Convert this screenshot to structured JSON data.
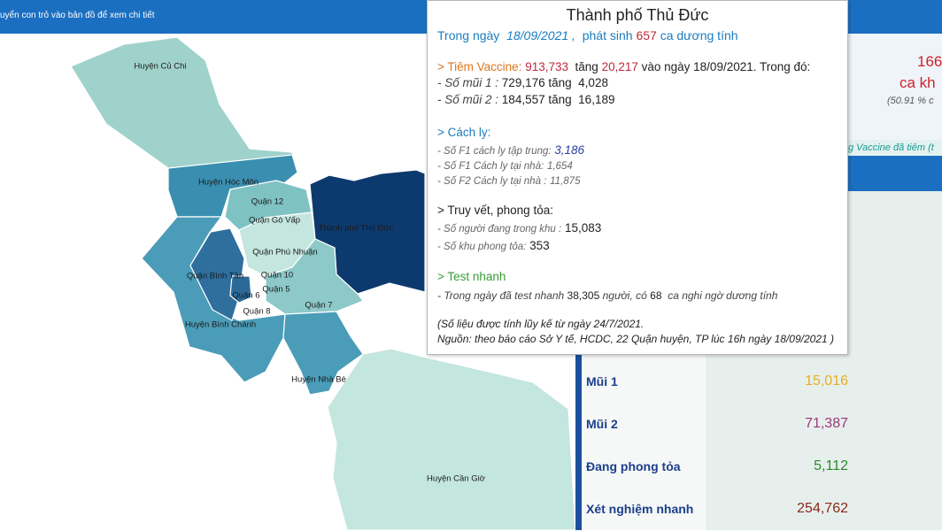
{
  "header": {
    "hint": "uyển con trỏ vào bản đồ để xem chi tiết"
  },
  "map": {
    "districts": [
      {
        "label": "Huyện Củ Chi"
      },
      {
        "label": "Huyện Hóc Môn"
      },
      {
        "label": "Quận 12"
      },
      {
        "label": "Quận Gò Vấp"
      },
      {
        "label": "Thành phố Thủ Đức"
      },
      {
        "label": "Quận Phú Nhuận"
      },
      {
        "label": "Quận Bình Tân"
      },
      {
        "label": "Quận 10"
      },
      {
        "label": "Quận 6"
      },
      {
        "label": "Quận 5"
      },
      {
        "label": "Quận 8"
      },
      {
        "label": "Quận 7"
      },
      {
        "label": "Huyện Bình Chánh"
      },
      {
        "label": "Huyện Nhà Bè"
      },
      {
        "label": "Huyện Cần Giờ"
      }
    ]
  },
  "tooltip": {
    "title": "Thành phố Thủ Đức",
    "daily": {
      "label": "Trong ngày",
      "date": "18/09/2021 ,",
      "text": "phát sinh",
      "count": "657",
      "suffix": "ca dương tính"
    },
    "vaccine": {
      "heading": "> Tiêm Vaccine:",
      "total": "913,733",
      "text1": "tăng",
      "increase": "20,217",
      "text2": "vào ngày 18/09/2021. Trong đó:",
      "doses": [
        {
          "label": "- Số mũi 1 :",
          "value": "729,176",
          "text": "tăng",
          "increase": "4,028"
        },
        {
          "label": "- Số mũi 2 :",
          "value": "184,557",
          "text": "tăng",
          "increase": "16,189"
        }
      ]
    },
    "isolation": {
      "heading": "> Cách ly:",
      "items": [
        {
          "label": "- Số F1 cách ly tập trung:",
          "value": "3,186"
        },
        {
          "label": "- Số F1 Cách ly tại nhà:",
          "value": "1,654"
        },
        {
          "label": "- Số F2 Cách ly tại nhà :",
          "value": "11,875"
        }
      ]
    },
    "tracing": {
      "heading": "> Truy vết,  phong tỏa:",
      "items": [
        {
          "label": "- Số người đang trong khu :",
          "value": "15,083"
        },
        {
          "label": "- Số khu  phong tỏa:",
          "value": "353"
        }
      ]
    },
    "rapid_test": {
      "heading": "> Test nhanh",
      "text1": "- Trong ngày đã test nhanh",
      "tested": "38,305",
      "text2": "người, có",
      "suspected": "68",
      "text3": "ca nghi ngờ dương tính"
    },
    "notes": [
      "(Số liệu được tính lũy kế từ ngày 24/7/2021.",
      "Nguồn:  theo  báo cáo Sở Y tế, HCDC, 22 Quận huyện, TP  lúc 16h ngày 18/09/2021 )"
    ]
  },
  "side_panel": {
    "count": "166",
    "count_label": "ca kh",
    "percent": "(50.91 % c",
    "vaccine_caption": "g Vaccine đã tiêm (t"
  },
  "table": {
    "rows": [
      [
        "Mũi 1",
        "15,016"
      ],
      [
        "Mũi 2",
        "71,387"
      ],
      [
        "Đang phong tỏa",
        "5,112"
      ],
      [
        "Xét nghiệm nhanh",
        "254,762"
      ]
    ]
  }
}
